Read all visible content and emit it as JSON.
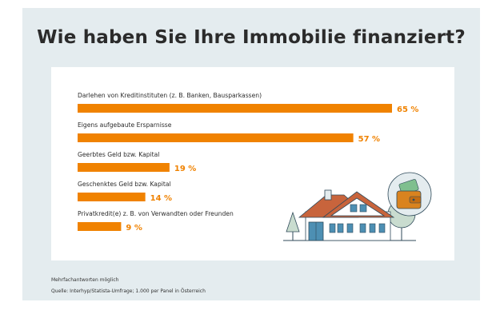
{
  "title": "Wie haben Sie Ihre Immobilie finanziert?",
  "colors": {
    "bar": "#f08200",
    "panel": "#e4ecef",
    "text": "#2b2b2b"
  },
  "chart_data": {
    "type": "bar",
    "orientation": "horizontal",
    "title": "Wie haben Sie Ihre Immobilie finanziert?",
    "categories": [
      "Darlehen von Kreditinstituten (z. B. Banken, Bausparkassen)",
      "Eigens aufgebaute Ersparnisse",
      "Geerbtes Geld bzw. Kapital",
      "Geschenktes Geld bzw. Kapital",
      "Privatkredit(e) z. B. von Verwandten oder Freunden"
    ],
    "values": [
      65,
      57,
      19,
      14,
      9
    ],
    "value_labels": [
      "65 %",
      "57 %",
      "19 %",
      "14 %",
      "9 %"
    ],
    "unit": "%",
    "xlim": [
      0,
      100
    ],
    "grid": false,
    "legend": "none"
  },
  "illustration_icon": "house-with-wallet-illustration",
  "footnotes": {
    "note": "Mehrfachantworten möglich",
    "source": "Quelle: Interhyp/Statista-Umfrage; 1.000 per Panel in Österreich"
  }
}
